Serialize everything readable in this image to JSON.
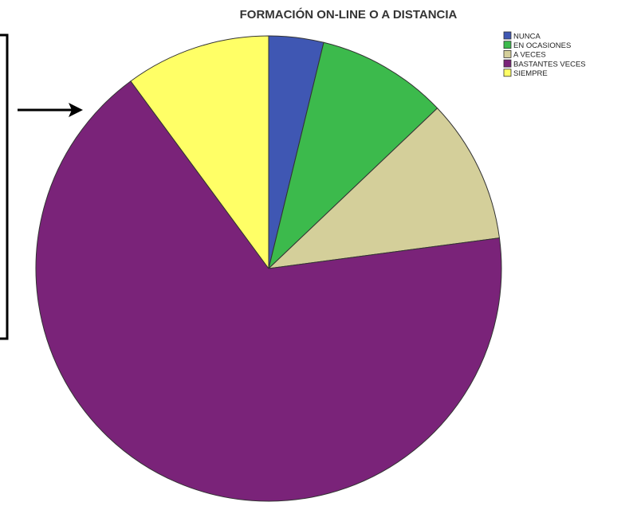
{
  "chart_data": {
    "type": "pie",
    "title": "FORMACIÓN ON-LINE O A DISTANCIA",
    "categories": [
      "NUNCA",
      "EN OCASIONES",
      "A VECES",
      "BASTANTES VECES",
      "SIEMPRE"
    ],
    "values": [
      3.8,
      9.1,
      10.0,
      67.0,
      10.1
    ],
    "colors": [
      "#3f57b3",
      "#3cba4c",
      "#d4cf9a",
      "#7a2379",
      "#ffff66"
    ],
    "legend_position": "top-right",
    "start_angle_deg": 0,
    "direction": "clockwise"
  },
  "annotation": {
    "type": "bracket-with-arrow",
    "color": "#000000"
  }
}
